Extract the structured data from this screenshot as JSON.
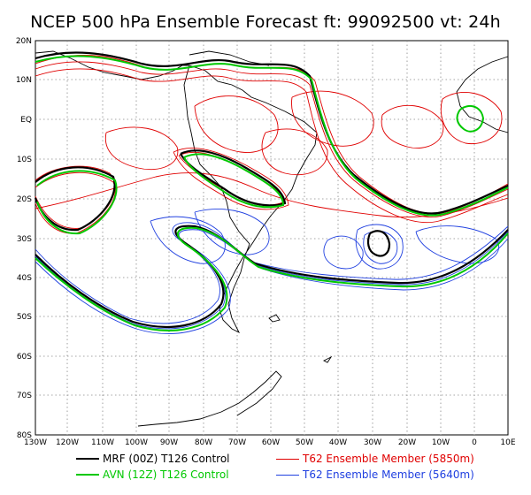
{
  "title": "NCEP 500 hPa Ensemble Forecast  ft: 99092500 vt: 24h",
  "axes": {
    "lat_labels": [
      "20N",
      "10N",
      "EQ",
      "10S",
      "20S",
      "30S",
      "40S",
      "50S",
      "60S",
      "70S",
      "80S"
    ],
    "lon_labels": [
      "130W",
      "120W",
      "110W",
      "100W",
      "90W",
      "80W",
      "70W",
      "60W",
      "50W",
      "40W",
      "30W",
      "20W",
      "10W",
      "0",
      "10E"
    ]
  },
  "legend": [
    {
      "label": "MRF (00Z) T126 Control",
      "color": "#000000"
    },
    {
      "label": "AVN (12Z) T126 Control",
      "color": "#00c800"
    },
    {
      "label": "T62 Ensemble Member (5850m)",
      "color": "#e00000"
    },
    {
      "label": "T62 Ensemble Member (5640m)",
      "color": "#2040e0"
    }
  ],
  "colors": {
    "coast": "#000000",
    "grid": "#888888",
    "red": "#e00000",
    "blue": "#2040e0",
    "green": "#00c800",
    "black": "#000000"
  }
}
